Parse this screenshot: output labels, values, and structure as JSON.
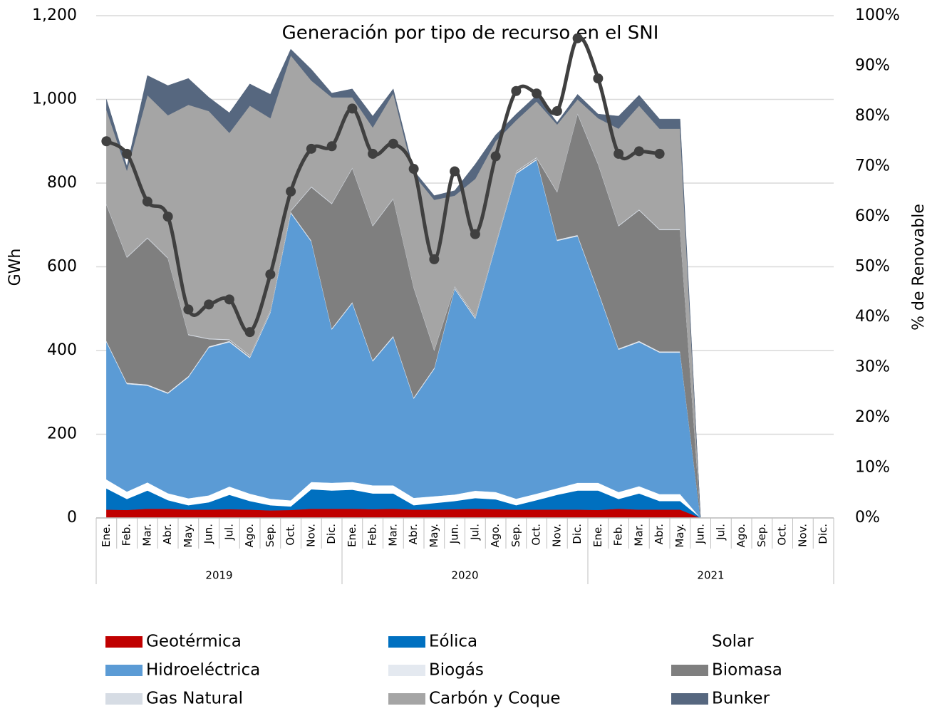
{
  "chart_data": {
    "type": "stacked_area_line",
    "title": "Generación por tipo de recurso en el  SNI",
    "y_label": "GWh",
    "y2_label": "% de Renovable",
    "categories": [
      "Ene.",
      "Feb.",
      "Mar.",
      "Abr.",
      "May.",
      "Jun.",
      "Jul.",
      "Ago.",
      "Sep.",
      "Oct.",
      "Nov.",
      "Dic.",
      "Ene.",
      "Feb.",
      "Mar.",
      "Abr.",
      "May.",
      "Jun.",
      "Jul.",
      "Ago.",
      "Sep.",
      "Oct.",
      "Nov.",
      "Dic.",
      "Ene.",
      "Feb.",
      "Mar.",
      "Abr.",
      "May.",
      "Jun.",
      "Jul.",
      "Ago.",
      "Sep.",
      "Oct.",
      "Nov.",
      "Dic."
    ],
    "groups": [
      {
        "name": "2019",
        "count": 12
      },
      {
        "name": "2020",
        "count": 12
      },
      {
        "name": "2021",
        "count": 12
      }
    ],
    "ylim": [
      0,
      1200
    ],
    "yticks": [
      0,
      200,
      400,
      600,
      800,
      {
        "value": 1000,
        "label": "1,000"
      },
      {
        "value": 1200,
        "label": "1,200"
      }
    ],
    "y2lim": [
      0,
      100
    ],
    "y2ticks": [
      {
        "value": 0,
        "label": "0%"
      },
      {
        "value": 10,
        "label": "10%"
      },
      {
        "value": 20,
        "label": "20%"
      },
      {
        "value": 30,
        "label": "30%"
      },
      {
        "value": 40,
        "label": "40%"
      },
      {
        "value": 50,
        "label": "50%"
      },
      {
        "value": 60,
        "label": "60%"
      },
      {
        "value": 70,
        "label": "70%"
      },
      {
        "value": 80,
        "label": "80%"
      },
      {
        "value": 90,
        "label": "90%"
      },
      {
        "value": 100,
        "label": "100%"
      }
    ],
    "grid": true,
    "series": [
      {
        "name": "Geotérmica",
        "color": "#c00000",
        "values": [
          20,
          19,
          22,
          22,
          20,
          20,
          21,
          20,
          18,
          19,
          22,
          22,
          22,
          21,
          22,
          20,
          20,
          21,
          22,
          21,
          20,
          20,
          20,
          20,
          19,
          22,
          20,
          20,
          20,
          0,
          null,
          null,
          null,
          null,
          null,
          null
        ]
      },
      {
        "name": "Eólica",
        "color": "#0070c0",
        "values": [
          50,
          26,
          43,
          20,
          10,
          17,
          34,
          20,
          12,
          8,
          46,
          43,
          45,
          37,
          36,
          10,
          15,
          19,
          25,
          23,
          10,
          22,
          35,
          45,
          46,
          23,
          38,
          20,
          20,
          0,
          null,
          null,
          null,
          null,
          null,
          null
        ]
      },
      {
        "name": "Solar",
        "color": "#ffffff",
        "values": [
          22,
          18,
          20,
          17,
          17,
          17,
          20,
          18,
          16,
          15,
          18,
          19,
          19,
          20,
          20,
          18,
          17,
          16,
          18,
          18,
          16,
          16,
          16,
          19,
          19,
          17,
          18,
          17,
          17,
          0,
          null,
          null,
          null,
          null,
          null,
          null
        ]
      },
      {
        "name": "Hidroeléctrica",
        "color": "#5b9bd5",
        "values": [
          328,
          257,
          231,
          238,
          289,
          353,
          345,
          324,
          444,
          686,
          574,
          366,
          427,
          296,
          354,
          237,
          304,
          491,
          411,
          588,
          776,
          797,
          591,
          589,
          456,
          340,
          344,
          338,
          338,
          0,
          null,
          null,
          null,
          null,
          null,
          null
        ]
      },
      {
        "name": "Biogás",
        "color": "#e4e9f0",
        "values": [
          3,
          3,
          3,
          3,
          3,
          3,
          3,
          3,
          3,
          3,
          3,
          3,
          3,
          3,
          3,
          3,
          3,
          3,
          3,
          3,
          3,
          3,
          3,
          3,
          3,
          3,
          3,
          3,
          3,
          0,
          null,
          null,
          null,
          null,
          null,
          null
        ]
      },
      {
        "name": "Biomasa",
        "color": "#7f7f7f",
        "values": [
          325,
          299,
          349,
          320,
          98,
          17,
          2,
          2,
          2,
          2,
          127,
          297,
          319,
          320,
          327,
          262,
          41,
          2,
          2,
          2,
          2,
          2,
          113,
          289,
          302,
          292,
          312,
          290,
          290,
          0,
          null,
          null,
          null,
          null,
          null,
          null
        ]
      },
      {
        "name": "Gas Natural",
        "color": "#d6dce4",
        "values": [
          2,
          2,
          2,
          2,
          2,
          2,
          2,
          2,
          2,
          2,
          2,
          2,
          2,
          2,
          2,
          2,
          2,
          2,
          2,
          2,
          2,
          2,
          2,
          2,
          2,
          2,
          2,
          2,
          2,
          0,
          null,
          null,
          null,
          null,
          null,
          null
        ]
      },
      {
        "name": "Carbón y Coque",
        "color": "#a5a5a5",
        "values": [
          225,
          206,
          340,
          340,
          548,
          543,
          493,
          596,
          458,
          370,
          253,
          253,
          168,
          234,
          251,
          268,
          358,
          216,
          327,
          243,
          121,
          133,
          160,
          33,
          108,
          231,
          248,
          240,
          240,
          0,
          null,
          null,
          null,
          null,
          null,
          null
        ]
      },
      {
        "name": "Bunker",
        "color": "#56677f",
        "values": [
          25,
          10,
          47,
          71,
          63,
          33,
          48,
          52,
          57,
          15,
          27,
          10,
          20,
          27,
          10,
          10,
          10,
          12,
          35,
          15,
          15,
          15,
          5,
          12,
          10,
          30,
          25,
          23,
          23,
          0,
          null,
          null,
          null,
          null,
          null,
          null
        ]
      }
    ],
    "line": {
      "name": "% de Renovable",
      "color": "#404040",
      "axis": "y2",
      "values": [
        75,
        72.5,
        63,
        60,
        41.5,
        42.5,
        43.5,
        37,
        48.5,
        65,
        73.5,
        74,
        81.5,
        72.5,
        74.5,
        69.5,
        51.5,
        69,
        56.5,
        72,
        85,
        84.5,
        81,
        95.5,
        87.5,
        72.5,
        73,
        72.5,
        null,
        null,
        null,
        null,
        null,
        null,
        null,
        null
      ]
    }
  }
}
